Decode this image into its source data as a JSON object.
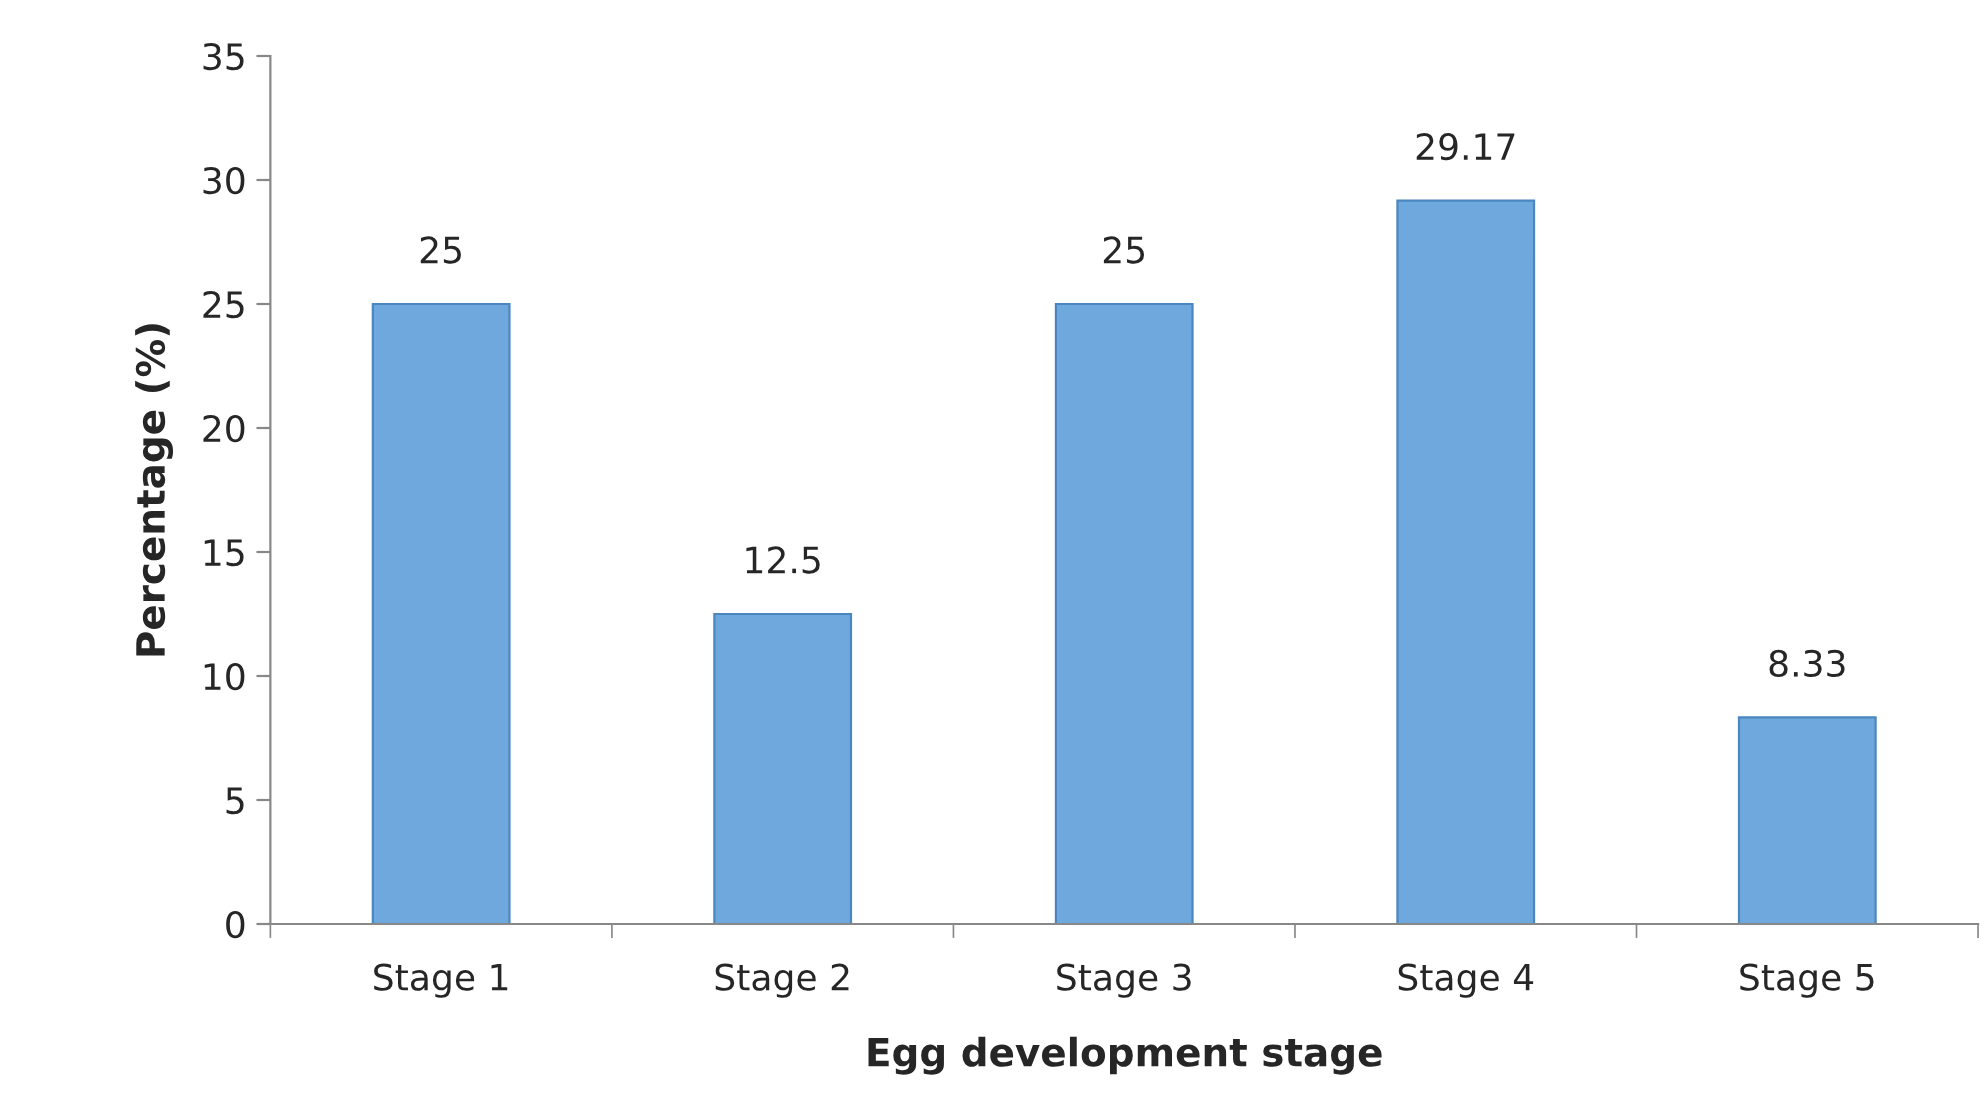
{
  "chart_data": {
    "type": "bar",
    "xlabel": "Egg development stage",
    "ylabel": "Percentage (%)",
    "categories": [
      "Stage 1",
      "Stage 2",
      "Stage 3",
      "Stage 4",
      "Stage 5"
    ],
    "values": [
      25,
      12.5,
      25,
      29.17,
      8.33
    ],
    "color": "#6fa8dc",
    "ylim": [
      0,
      35
    ],
    "yticks": [
      0,
      5,
      10,
      15,
      20,
      25,
      30,
      35
    ],
    "grid": false,
    "data_labels": true
  }
}
